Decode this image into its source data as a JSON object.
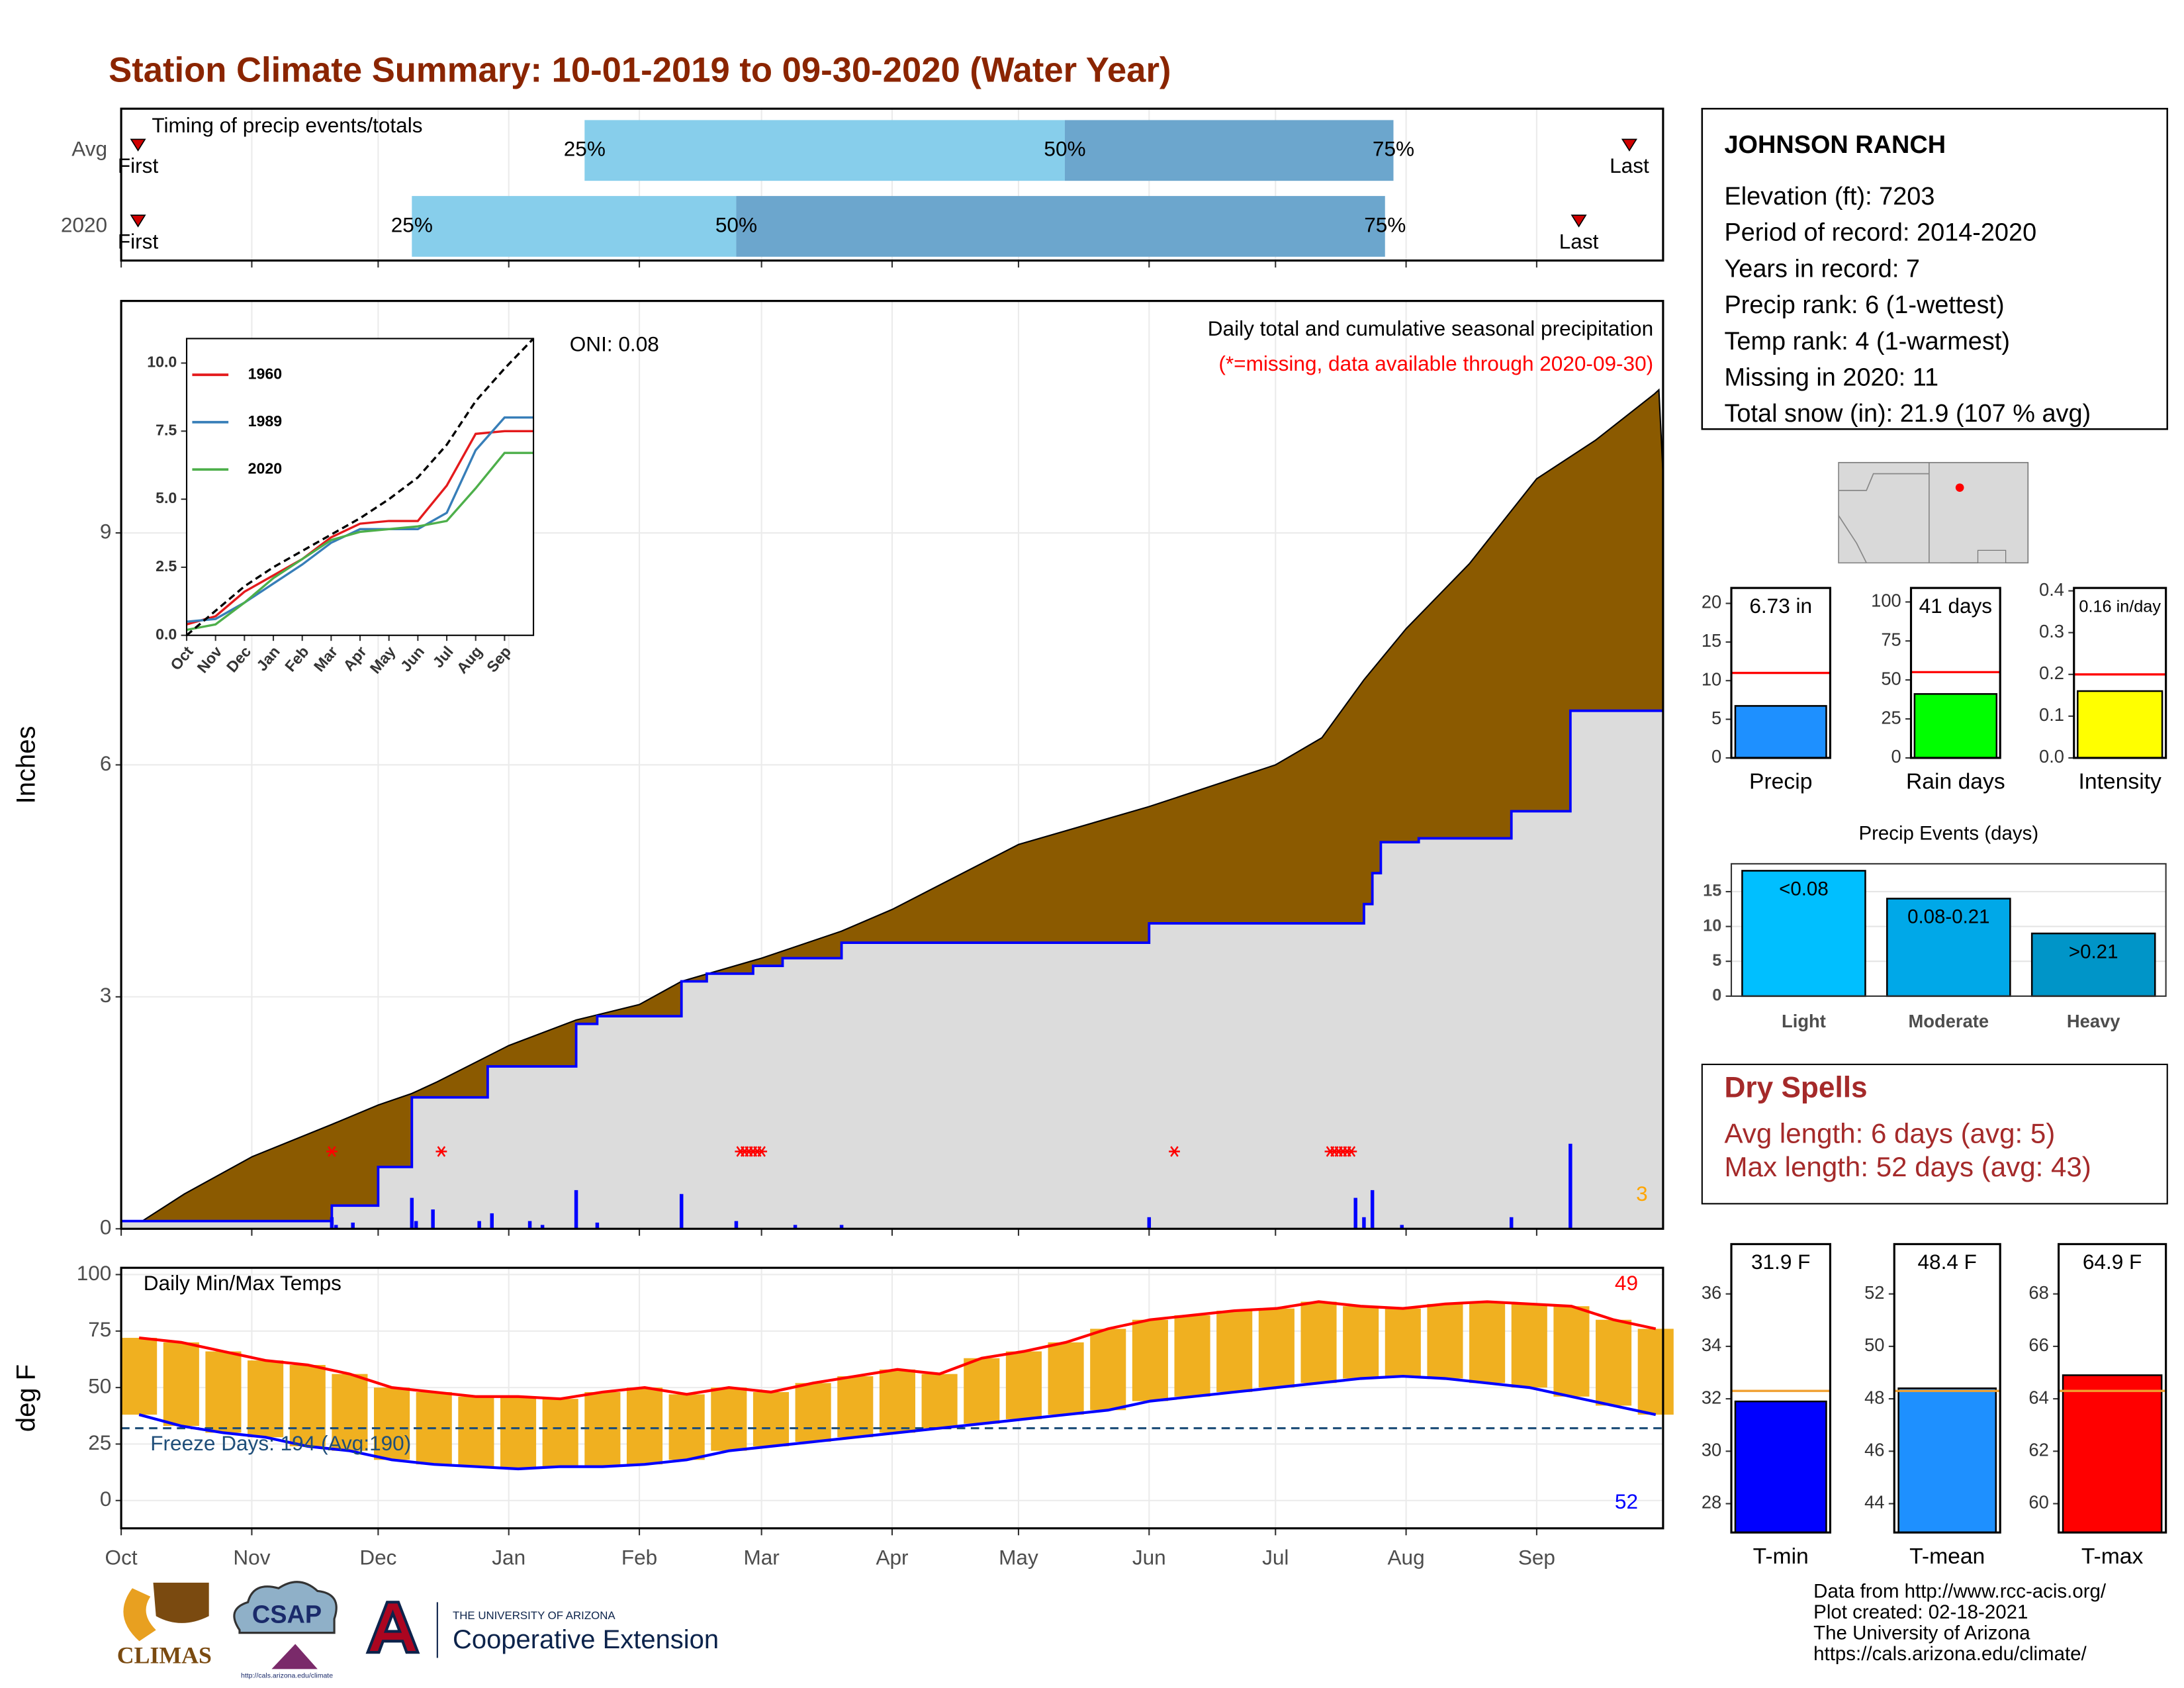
{
  "title": "Station Climate Summary: 10-01-2019 to 09-30-2020 (Water Year)",
  "station": {
    "name": "JOHNSON RANCH",
    "lines": [
      "Elevation (ft): 7203",
      "Period of record: 2014-2020",
      "Years in record: 7",
      "Precip rank: 6 (1-wettest)",
      "Temp rank: 4 (1-warmest)",
      "Missing in 2020: 11",
      "Total snow (in): 21.9 (107 % avg)"
    ]
  },
  "dry_spells": {
    "title": "Dry Spells",
    "lines": [
      "Avg length: 6 days (avg: 5)",
      "Max length: 52 days (avg: 43)"
    ]
  },
  "source": [
    "Data from http://www.rcc-acis.org/",
    "Plot created: 02-18-2021",
    "The University of Arizona",
    "https://cals.arizona.edu/climate/"
  ],
  "logos": {
    "climas": "CLIMAS",
    "csap": "CSAP",
    "csap_url": "http://cals.arizona.edu/climate",
    "university": "THE UNIVERSITY OF ARIZONA",
    "extension": "Cooperative Extension"
  },
  "chart_data": [
    {
      "type": "range_bar",
      "title": "Timing of precip events/totals",
      "categories": [
        "Avg",
        "2020"
      ],
      "quartiles": [
        [
          110,
          224,
          302
        ],
        [
          69,
          146,
          300
        ]
      ],
      "quartile_labels": [
        "25%",
        "50%",
        "75%"
      ],
      "colors": [
        "#87ceeb",
        "#6ca6cd"
      ],
      "first": [
        4,
        4
      ],
      "last": [
        358,
        346
      ],
      "first_label": "First",
      "last_label": "Last",
      "marker_color": "#d00000",
      "xlim": [
        0,
        366
      ],
      "xticks": [
        0,
        31,
        61,
        92,
        123,
        152,
        183,
        213,
        244,
        274,
        305,
        336
      ],
      "grid": true
    },
    {
      "type": "area",
      "title": "Daily total and cumulative seasonal precipitation",
      "subtitle": "(*=missing, data available through 2020-09-30)",
      "annotation": "ONI: 0.08",
      "y_label": "Inches",
      "count_label": "3",
      "count_color": "#ffa500",
      "xlim": [
        0,
        366
      ],
      "xticks": [
        0,
        31,
        61,
        92,
        123,
        152,
        183,
        213,
        244,
        274,
        305,
        336
      ],
      "ylim": [
        0,
        12
      ],
      "yticks": [
        0,
        3,
        6,
        9
      ],
      "grid": true,
      "series": [
        {
          "color": "#8b5a00",
          "edge": "#000000",
          "x": [
            0,
            5,
            15,
            31,
            50,
            61,
            69,
            75,
            92,
            108,
            123,
            133,
            152,
            171,
            183,
            213,
            244,
            274,
            285,
            295,
            305,
            320,
            336,
            350,
            364,
            365,
            366
          ],
          "values": [
            0,
            0.1,
            0.45,
            0.93,
            1.35,
            1.6,
            1.75,
            1.9,
            2.37,
            2.7,
            2.9,
            3.2,
            3.5,
            3.85,
            4.13,
            4.97,
            5.46,
            6.0,
            6.35,
            7.1,
            7.76,
            8.6,
            9.7,
            10.2,
            10.8,
            10.85,
            9.75
          ]
        },
        {
          "color": "#dcdcdc",
          "edge": "#0000ff",
          "x": [
            0,
            50,
            50,
            61,
            61,
            69,
            69,
            87,
            87,
            108,
            108,
            113,
            113,
            133,
            133,
            139,
            139,
            150,
            150,
            157,
            157,
            171,
            171,
            244,
            244,
            295,
            295,
            297,
            297,
            299,
            299,
            308,
            308,
            330,
            330,
            344,
            344,
            366
          ],
          "values": [
            0.1,
            0.1,
            0.3,
            0.3,
            0.8,
            0.8,
            1.7,
            1.7,
            2.1,
            2.1,
            2.65,
            2.65,
            2.75,
            2.75,
            3.2,
            3.2,
            3.3,
            3.3,
            3.4,
            3.4,
            3.5,
            3.5,
            3.7,
            3.7,
            3.95,
            3.95,
            4.2,
            4.2,
            4.6,
            4.6,
            5.0,
            5.0,
            5.05,
            5.05,
            5.4,
            5.4,
            6.7,
            6.7
          ]
        }
      ],
      "daily": {
        "color": "#0000ff",
        "x": [
          50,
          51,
          55,
          69,
          70,
          74,
          85,
          88,
          97,
          100,
          108,
          113,
          133,
          146,
          160,
          171,
          244,
          293,
          295,
          297,
          304,
          330,
          344
        ],
        "values": [
          0.15,
          0.05,
          0.08,
          0.4,
          0.1,
          0.25,
          0.1,
          0.2,
          0.1,
          0.05,
          0.5,
          0.08,
          0.45,
          0.1,
          0.05,
          0.05,
          0.15,
          0.4,
          0.15,
          0.5,
          0.05,
          0.15,
          1.1
        ]
      },
      "missing": {
        "color": "#ff0000",
        "y": 1.0,
        "x": [
          50,
          76,
          147,
          148,
          149,
          150,
          151,
          152,
          250,
          287,
          288,
          289,
          290,
          291,
          292
        ]
      }
    },
    {
      "type": "line",
      "legend": "top-left",
      "x": [
        0,
        1,
        2,
        3,
        4,
        5,
        6,
        7,
        8,
        9,
        10,
        11,
        12
      ],
      "xlim": [
        0,
        12
      ],
      "xticks": [
        {
          "value": 0,
          "label": "Oct"
        },
        {
          "value": 1,
          "label": "Nov"
        },
        {
          "value": 2,
          "label": "Dec"
        },
        {
          "value": 3,
          "label": "Jan"
        },
        {
          "value": 4,
          "label": "Feb"
        },
        {
          "value": 5,
          "label": "Mar"
        },
        {
          "value": 6,
          "label": "Apr"
        },
        {
          "value": 7,
          "label": "May"
        },
        {
          "value": 8,
          "label": "Jun"
        },
        {
          "value": 9,
          "label": "Jul"
        },
        {
          "value": 10,
          "label": "Aug"
        },
        {
          "value": 11,
          "label": "Sep"
        }
      ],
      "ylim": [
        0,
        10.9
      ],
      "yticks": [
        {
          "value": 0,
          "label": "0.0"
        },
        2.5,
        {
          "value": 5,
          "label": "5.0"
        },
        7.5,
        {
          "value": 10,
          "label": "10.0"
        }
      ],
      "grid": true,
      "series": [
        {
          "name": "1960",
          "color": "#e41a1c",
          "values": [
            0.4,
            0.7,
            1.6,
            2.2,
            2.8,
            3.6,
            4.1,
            4.2,
            4.2,
            5.5,
            7.4,
            7.5,
            7.5
          ]
        },
        {
          "name": "1989",
          "color": "#377eb8",
          "values": [
            0.5,
            0.6,
            1.2,
            1.9,
            2.6,
            3.4,
            3.9,
            3.9,
            3.9,
            4.5,
            6.8,
            8.0,
            8.0
          ]
        },
        {
          "name": "2020",
          "color": "#4daf4a",
          "values": [
            0.2,
            0.4,
            1.2,
            2.1,
            2.8,
            3.5,
            3.8,
            3.9,
            4.0,
            4.2,
            5.4,
            6.7,
            6.7
          ]
        },
        {
          "color": "#000000",
          "dashed": true,
          "values": [
            0,
            0.9,
            1.8,
            2.5,
            3.1,
            3.7,
            4.3,
            5.0,
            5.8,
            7.0,
            8.6,
            9.8,
            10.9
          ]
        }
      ]
    },
    {
      "type": "range_line",
      "title": "Daily Min/Max Temps",
      "y_label": "deg F",
      "x": [
        0,
        10,
        20,
        30,
        40,
        50,
        60,
        70,
        80,
        90,
        100,
        110,
        120,
        130,
        140,
        150,
        160,
        170,
        180,
        190,
        200,
        210,
        220,
        230,
        240,
        250,
        260,
        270,
        280,
        290,
        300,
        310,
        320,
        330,
        340,
        350,
        360
      ],
      "xlim": [
        0,
        366
      ],
      "xticks": [
        {
          "value": 0,
          "label": "Oct"
        },
        {
          "value": 31,
          "label": "Nov"
        },
        {
          "value": 61,
          "label": "Dec"
        },
        {
          "value": 92,
          "label": "Jan"
        },
        {
          "value": 123,
          "label": "Feb"
        },
        {
          "value": 152,
          "label": "Mar"
        },
        {
          "value": 183,
          "label": "Apr"
        },
        {
          "value": 213,
          "label": "May"
        },
        {
          "value": 244,
          "label": "Jun"
        },
        {
          "value": 274,
          "label": "Jul"
        },
        {
          "value": 305,
          "label": "Aug"
        },
        {
          "value": 336,
          "label": "Sep"
        }
      ],
      "ylim": [
        -12.3,
        103
      ],
      "yticks": [
        0,
        25,
        50,
        75,
        100
      ],
      "grid": true,
      "range_color": "#f0b020",
      "series": [
        {
          "color": "#ff0000",
          "values": [
            72,
            70,
            66,
            62,
            60,
            56,
            50,
            48,
            46,
            46,
            45,
            48,
            50,
            47,
            50,
            48,
            52,
            55,
            58,
            56,
            63,
            66,
            70,
            76,
            80,
            82,
            84,
            85,
            88,
            86,
            85,
            87,
            88,
            87,
            86,
            80,
            76
          ]
        },
        {
          "color": "#0000ff",
          "values": [
            38,
            33,
            30,
            28,
            24,
            22,
            18,
            16,
            15,
            14,
            15,
            15,
            16,
            18,
            22,
            24,
            26,
            28,
            30,
            32,
            34,
            36,
            38,
            40,
            44,
            46,
            48,
            50,
            52,
            54,
            55,
            54,
            52,
            50,
            46,
            42,
            38
          ]
        }
      ],
      "freeze": 32,
      "freeze_color": "#1f4e79",
      "freeze_label": "Freeze Days: 194 (Avg:190)",
      "max_label": "49",
      "min_label": "52"
    },
    {
      "type": "bar",
      "categories": [
        "Precip"
      ],
      "values": [
        6.73
      ],
      "value_labels": [
        "6.73 in"
      ],
      "color": "#1e90ff",
      "average": 11,
      "average_color": "#ff0000",
      "ylim": [
        0,
        22
      ],
      "yticks": [
        0,
        5,
        10,
        15,
        20
      ]
    },
    {
      "type": "bar",
      "categories": [
        "Rain days"
      ],
      "values": [
        41
      ],
      "value_labels": [
        "41 days"
      ],
      "color": "#00ff00",
      "average": 55,
      "average_color": "#ff0000",
      "ylim": [
        0,
        109
      ],
      "yticks": [
        0,
        25,
        50,
        75,
        100
      ]
    },
    {
      "type": "bar",
      "categories": [
        "Intensity"
      ],
      "values": [
        0.16
      ],
      "value_labels": [
        "0.16 in/day"
      ],
      "color": "#ffff00",
      "average": 0.2,
      "average_color": "#ff0000",
      "ylim": [
        0,
        0.407
      ],
      "yticks": [
        {
          "value": 0,
          "label": "0.0"
        },
        0.1,
        0.2,
        0.3,
        0.4
      ]
    },
    {
      "type": "bar",
      "title": "Precip Events (days)",
      "categories": [
        "Light",
        "Moderate",
        "Heavy"
      ],
      "values": [
        18,
        14,
        9
      ],
      "bar_labels": [
        "<0.08",
        "0.08-0.21",
        ">0.21"
      ],
      "colors": [
        "#00bfff",
        "#00a8e8",
        "#0095c8"
      ],
      "ylim": [
        0,
        19
      ],
      "yticks": [
        0,
        5,
        10,
        15
      ],
      "grid": true
    },
    {
      "type": "bar",
      "categories": [
        "T-min"
      ],
      "values": [
        31.9
      ],
      "value_labels": [
        "31.9 F"
      ],
      "color": "#0000ff",
      "average": 32.3,
      "average_color": "#f0a030",
      "ylim": [
        26.9,
        37.9
      ],
      "yticks": [
        28,
        30,
        32,
        34,
        36
      ]
    },
    {
      "type": "bar",
      "categories": [
        "T-mean"
      ],
      "values": [
        48.4
      ],
      "value_labels": [
        "48.4 F"
      ],
      "color": "#1e90ff",
      "average": 48.3,
      "average_color": "#f0a030",
      "ylim": [
        42.9,
        53.9
      ],
      "yticks": [
        44,
        46,
        48,
        50,
        52
      ]
    },
    {
      "type": "bar",
      "categories": [
        "T-max"
      ],
      "values": [
        64.9
      ],
      "value_labels": [
        "64.9 F"
      ],
      "color": "#ff0000",
      "average": 64.3,
      "average_color": "#f0a030",
      "ylim": [
        58.9,
        69.9
      ],
      "yticks": [
        60,
        62,
        64,
        66,
        68
      ]
    }
  ]
}
